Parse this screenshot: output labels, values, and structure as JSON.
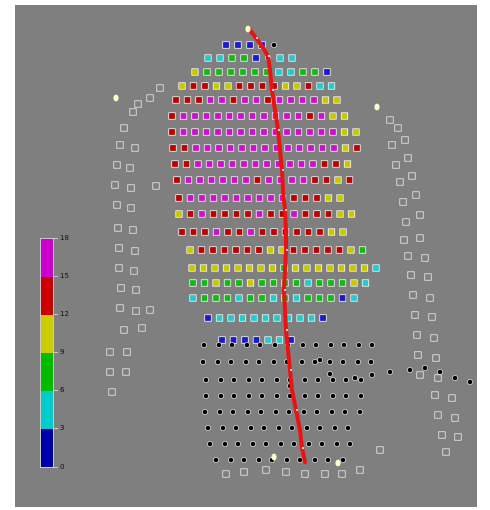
{
  "colorbar": {
    "labels": [
      "18",
      "15",
      "12",
      "9",
      "6",
      "3",
      "0"
    ],
    "colors": [
      "#0000aa",
      "#00cccc",
      "#00bb00",
      "#cccc00",
      "#cc0000",
      "#cc00cc"
    ]
  },
  "view": {
    "background": "#7f7f7f",
    "electrode_fill_empty": "#7f7f7f",
    "electrode_stroke_empty": "#e8e8e8",
    "trace_color": "#ee1111",
    "marker_color": "#ffffcc"
  }
}
